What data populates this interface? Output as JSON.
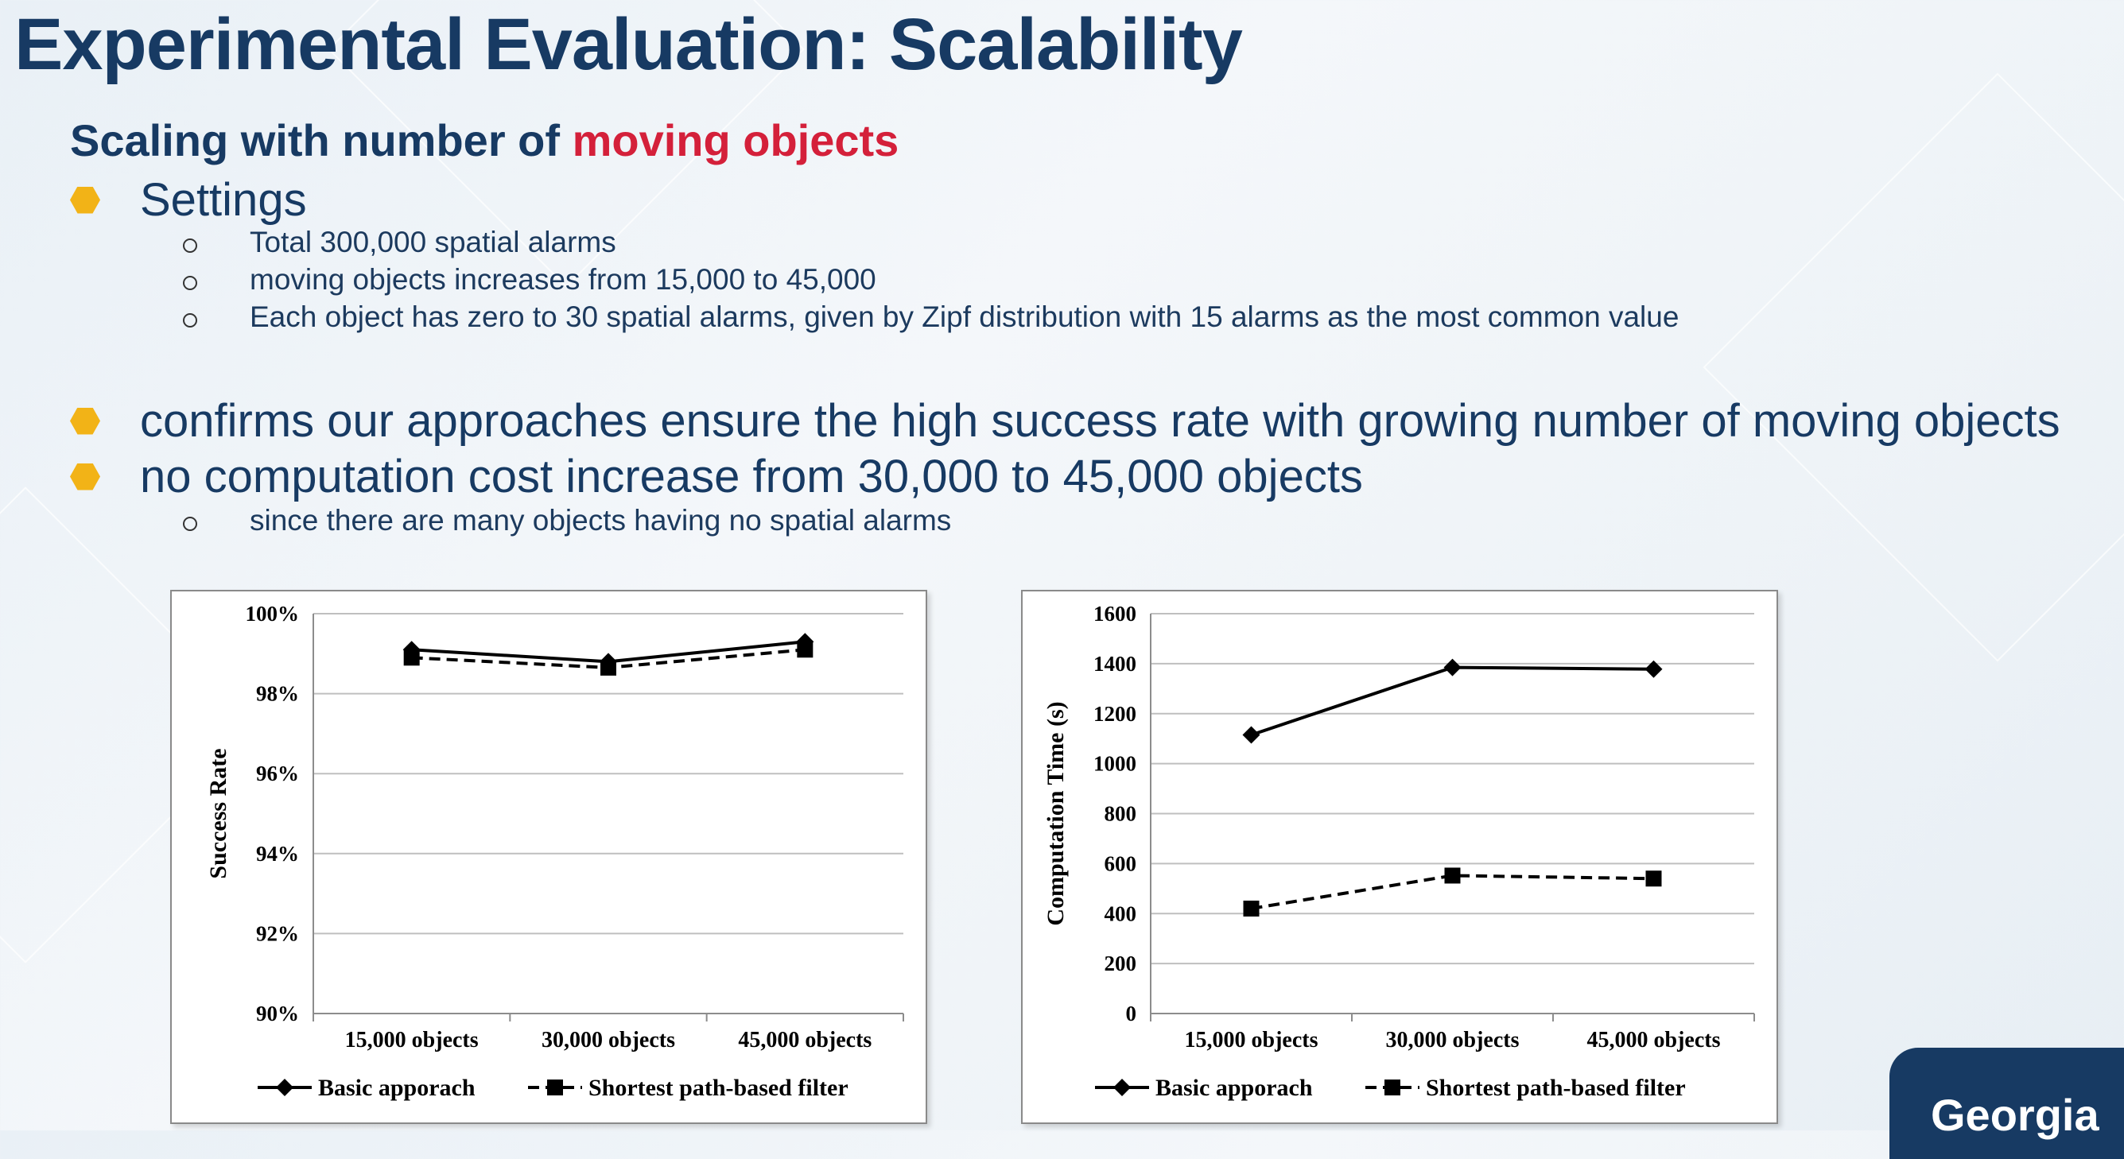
{
  "slide": {
    "title": "Experimental Evaluation: Scalability",
    "subtitle_pre": "Scaling with number of ",
    "subtitle_accent": "moving objects",
    "bullets": [
      {
        "text": "Settings",
        "subs": [
          "Total 300,000 spatial alarms",
          "moving objects increases from 15,000 to 45,000",
          "Each object has zero to 30 spatial alarms, given by Zipf distribution with 15 alarms as the most common value"
        ]
      },
      {
        "text": "confirms our approaches ensure the high success rate with growing number of moving objects",
        "subs": []
      },
      {
        "text": "no computation cost increase from 30,000 to 45,000 objects",
        "subs": [
          "since there are many objects having no spatial alarms"
        ]
      }
    ],
    "logo_text": "Georgia",
    "accent_color": "#d4203a",
    "bullet_color": "#f2b317"
  },
  "chart_data": [
    {
      "type": "line",
      "title": "",
      "xlabel": "",
      "ylabel": "Success Rate",
      "categories": [
        "15,000 objects",
        "30,000 objects",
        "45,000 objects"
      ],
      "ylim": [
        90,
        100
      ],
      "yticks": [
        "90%",
        "92%",
        "94%",
        "96%",
        "98%",
        "100%"
      ],
      "ytick_values": [
        90,
        92,
        94,
        96,
        98,
        100
      ],
      "grid": true,
      "legend": "bottom",
      "series": [
        {
          "name": "Basic apporach",
          "values": [
            99.1,
            98.8,
            99.3
          ],
          "marker": "diamond",
          "style": "solid"
        },
        {
          "name": "Shortest path-based filter",
          "values": [
            98.9,
            98.65,
            99.1
          ],
          "marker": "square",
          "style": "dashed"
        }
      ]
    },
    {
      "type": "line",
      "title": "",
      "xlabel": "",
      "ylabel": "Computation Time (s)",
      "categories": [
        "15,000 objects",
        "30,000 objects",
        "45,000 objects"
      ],
      "ylim": [
        0,
        1600
      ],
      "yticks": [
        "0",
        "200",
        "400",
        "600",
        "800",
        "1000",
        "1200",
        "1400",
        "1600"
      ],
      "ytick_values": [
        0,
        200,
        400,
        600,
        800,
        1000,
        1200,
        1400,
        1600
      ],
      "grid": true,
      "legend": "bottom",
      "series": [
        {
          "name": "Basic apporach",
          "values": [
            1115,
            1385,
            1378
          ],
          "marker": "diamond",
          "style": "solid"
        },
        {
          "name": "Shortest path-based filter",
          "values": [
            420,
            552,
            540
          ],
          "marker": "square",
          "style": "dashed"
        }
      ]
    }
  ]
}
